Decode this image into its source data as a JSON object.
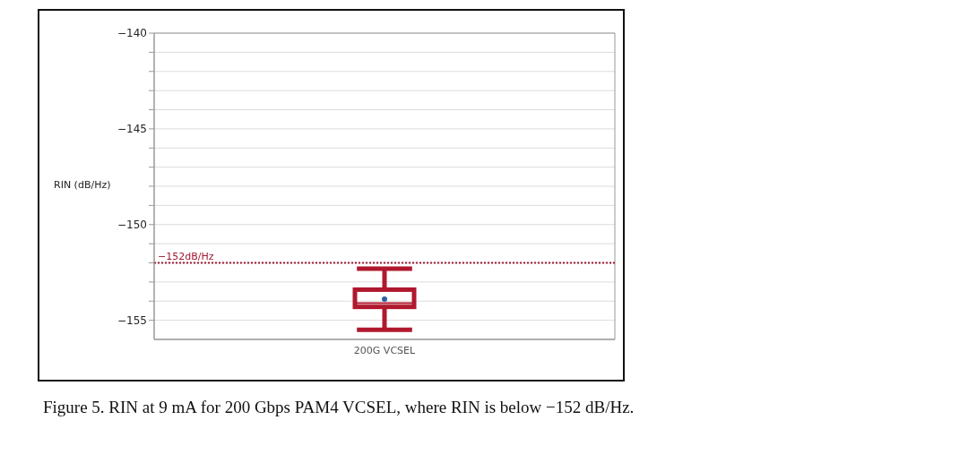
{
  "chart_data": {
    "type": "box",
    "categories": [
      "200G VCSEL"
    ],
    "series": [
      {
        "color": "#b0182e",
        "boxes": [
          {
            "low": -155.5,
            "q1": -154.3,
            "median": -154.1,
            "q3": -153.4,
            "high": -152.3,
            "mean": -153.9
          }
        ]
      }
    ],
    "ylabel": "RIN (dB/Hz)",
    "ylim": [
      -156,
      -140
    ],
    "yticks": [
      {
        "value": -155,
        "label": "−155"
      },
      {
        "value": -154,
        "label": null
      },
      {
        "value": -153,
        "label": null
      },
      {
        "value": -152,
        "label": null
      },
      {
        "value": -151,
        "label": null
      },
      {
        "value": -150,
        "label": "−150"
      },
      {
        "value": -149,
        "label": null
      },
      {
        "value": -148,
        "label": null
      },
      {
        "value": -147,
        "label": null
      },
      {
        "value": -146,
        "label": null
      },
      {
        "value": -145,
        "label": "−145"
      },
      {
        "value": -144,
        "label": null
      },
      {
        "value": -143,
        "label": null
      },
      {
        "value": -142,
        "label": null
      },
      {
        "value": -141,
        "label": null
      },
      {
        "value": -140,
        "label": "−140"
      }
    ],
    "grid": "y",
    "ref_lines": [
      {
        "axis": "y",
        "value": -152,
        "label": "−152dB/Hz",
        "color": "#a01830",
        "line_style": "dotted"
      }
    ],
    "annotations": [
      "Figure 5. RIN at 9 mA for 200 Gbps PAM4 VCSEL, where RIN is below −152 dB/Hz."
    ]
  }
}
